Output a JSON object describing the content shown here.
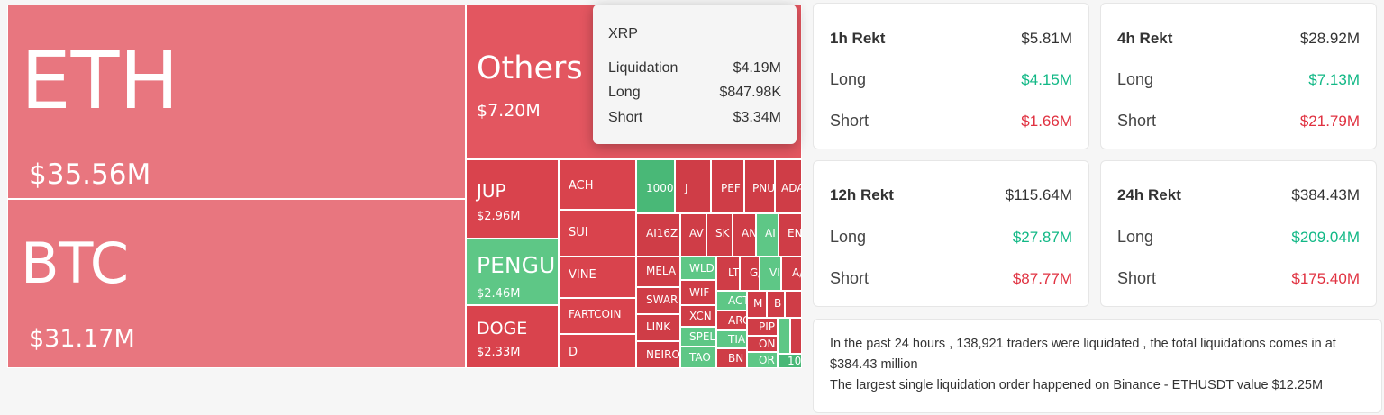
{
  "colors": {
    "long_green": "#12b886",
    "short_red": "#e03140",
    "tile_red_light": "#e8767f",
    "tile_red": "#e35660",
    "tile_red_dark": "#cf3d47",
    "tile_green": "#5ec786"
  },
  "treemap": {
    "major": [
      {
        "name": "ETH",
        "value": "$35.56M"
      },
      {
        "name": "BTC",
        "value": "$31.17M"
      },
      {
        "name": "Others",
        "value": "$7.20M"
      },
      {
        "name": "JUP",
        "value": "$2.96M"
      },
      {
        "name": "PENGU",
        "value": "$2.46M"
      },
      {
        "name": "DOGE",
        "value": "$2.33M"
      }
    ],
    "mid": [
      "ACH",
      "SUI",
      "VINE",
      "FARTCOIN",
      "D"
    ],
    "small": [
      "1000",
      "J",
      "PEF",
      "PNU",
      "ADA",
      "AI16Z",
      "AV",
      "SK",
      "AN",
      "AI",
      "EN",
      "MELA",
      "WLD",
      "LT",
      "G/",
      "VI",
      "A/",
      "SWAR",
      "WIF",
      "ACT",
      "M",
      "B",
      "LINK",
      "XCN",
      "ARC",
      "PIP",
      "NEIRO",
      "SPEL",
      "TIA",
      "ON",
      "TAO",
      "BN",
      "OR",
      "10"
    ]
  },
  "tooltip": {
    "title": "XRP",
    "rows": [
      {
        "label": "Liquidation",
        "value": "$4.19M"
      },
      {
        "label": "Long",
        "value": "$847.98K"
      },
      {
        "label": "Short",
        "value": "$3.34M"
      }
    ]
  },
  "cards": [
    {
      "title": "1h Rekt",
      "total": "$5.81M",
      "long_label": "Long",
      "long": "$4.15M",
      "short_label": "Short",
      "short": "$1.66M"
    },
    {
      "title": "4h Rekt",
      "total": "$28.92M",
      "long_label": "Long",
      "long": "$7.13M",
      "short_label": "Short",
      "short": "$21.79M"
    },
    {
      "title": "12h Rekt",
      "total": "$115.64M",
      "long_label": "Long",
      "long": "$27.87M",
      "short_label": "Short",
      "short": "$87.77M"
    },
    {
      "title": "24h Rekt",
      "total": "$384.43M",
      "long_label": "Long",
      "long": "$209.04M",
      "short_label": "Short",
      "short": "$175.40M"
    }
  ],
  "summary": {
    "line1": "In the past 24 hours , 138,921 traders were liquidated , the total liquidations comes in at $384.43 million",
    "line2": "The largest single liquidation order happened on Binance - ETHUSDT value $12.25M"
  }
}
